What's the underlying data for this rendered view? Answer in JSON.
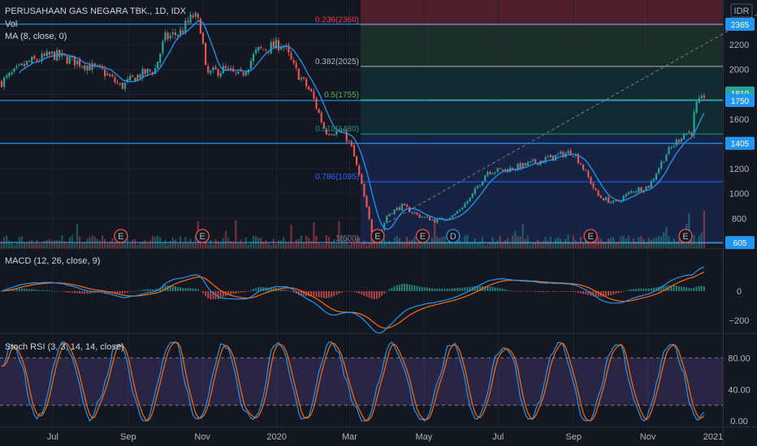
{
  "header": {
    "title": "PERUSAHAAN GAS NEGARA TBK., 1D, IDX",
    "vol_label": "Vol",
    "ma_label": "MA (8, close, 0)",
    "currency": "IDR"
  },
  "price_axis": {
    "ticks": [
      "2200",
      "2000",
      "1800",
      "1600",
      "1200",
      "1000",
      "800"
    ],
    "tick_values": [
      2200,
      2000,
      1800,
      1600,
      1200,
      1000,
      800
    ],
    "range": [
      560,
      2560
    ]
  },
  "price_tags": [
    {
      "label": "2365",
      "value": 2365,
      "style": "line"
    },
    {
      "label": "1810",
      "value": 1810,
      "style": "last"
    },
    {
      "label": "1750",
      "value": 1750,
      "style": "line"
    },
    {
      "label": "1405",
      "value": 1405,
      "style": "line"
    },
    {
      "label": "605",
      "value": 605,
      "style": "line"
    }
  ],
  "horizontal_levels": [
    2365,
    1750,
    1405,
    605
  ],
  "fibonacci": [
    {
      "label": "0.236(2360)",
      "value": 2360,
      "color": "#f23645"
    },
    {
      "label": "0.382(2025)",
      "value": 2025,
      "color": "#b2b5be"
    },
    {
      "label": "0.5(1755)",
      "value": 1755,
      "color": "#4caf50"
    },
    {
      "label": "0.618(1480)",
      "value": 1480,
      "color": "#089981"
    },
    {
      "label": "0.786(1095)",
      "value": 1095,
      "color": "#2962ff"
    },
    {
      "label": "1(600)",
      "value": 600,
      "color": "#787b86"
    }
  ],
  "time_axis": {
    "labels": [
      "Jul",
      "Sep",
      "Nov",
      "2020",
      "Mar",
      "May",
      "Jul",
      "Sep",
      "Nov",
      "2021"
    ]
  },
  "events": [
    {
      "label": "E",
      "type": "earnings"
    },
    {
      "label": "E",
      "type": "earnings"
    },
    {
      "label": "E",
      "type": "earnings"
    },
    {
      "label": "E",
      "type": "earnings"
    },
    {
      "label": "D",
      "type": "dividend"
    },
    {
      "label": "E",
      "type": "earnings"
    },
    {
      "label": "E",
      "type": "earnings"
    }
  ],
  "macd": {
    "label": "MACD (12, 26, close, 9)",
    "ticks": [
      "0",
      "−200"
    ],
    "tick_values": [
      0,
      -200
    ],
    "range": [
      -260,
      160
    ]
  },
  "rsi": {
    "label": "Stoch RSI (3, 3, 14, 14, close)",
    "ticks": [
      "80.00",
      "40.00",
      "0.00"
    ],
    "tick_values": [
      80,
      40,
      0
    ],
    "bands": [
      80,
      20
    ],
    "range": [
      -5,
      102
    ]
  },
  "colors": {
    "up": "#26a69a",
    "down": "#ef5350",
    "ma": "#2196f3",
    "level": "#2196f3",
    "macd": "#2196f3",
    "signal": "#ff6d00",
    "rsi_k": "#2196f3",
    "rsi_d": "#ff6d00",
    "rsi_band": "#7e57c2"
  },
  "chart_data": {
    "type": "candlestick",
    "symbol": "PERUSAHAAN GAS NEGARA TBK.",
    "interval": "1D",
    "exchange": "IDX",
    "close_path": [
      {
        "date": "2019-05-20",
        "close": 1900
      },
      {
        "date": "2019-06-10",
        "close": 2050
      },
      {
        "date": "2019-07-01",
        "close": 2120
      },
      {
        "date": "2019-07-22",
        "close": 2060
      },
      {
        "date": "2019-08-12",
        "close": 1980
      },
      {
        "date": "2019-08-26",
        "close": 1860
      },
      {
        "date": "2019-09-09",
        "close": 1950
      },
      {
        "date": "2019-09-23",
        "close": 2000
      },
      {
        "date": "2019-10-01",
        "close": 2250
      },
      {
        "date": "2019-10-14",
        "close": 2300
      },
      {
        "date": "2019-10-25",
        "close": 2440
      },
      {
        "date": "2019-10-31",
        "close": 2330
      },
      {
        "date": "2019-11-04",
        "close": 1960
      },
      {
        "date": "2019-11-18",
        "close": 2000
      },
      {
        "date": "2019-12-02",
        "close": 1940
      },
      {
        "date": "2019-12-16",
        "close": 2150
      },
      {
        "date": "2020-01-06",
        "close": 2210
      },
      {
        "date": "2020-01-16",
        "close": 2000
      },
      {
        "date": "2020-01-30",
        "close": 1800
      },
      {
        "date": "2020-02-10",
        "close": 1500
      },
      {
        "date": "2020-02-24",
        "close": 1500
      },
      {
        "date": "2020-03-02",
        "close": 1390
      },
      {
        "date": "2020-03-10",
        "close": 1100
      },
      {
        "date": "2020-03-19",
        "close": 700
      },
      {
        "date": "2020-03-24",
        "close": 620
      },
      {
        "date": "2020-04-01",
        "close": 830
      },
      {
        "date": "2020-04-13",
        "close": 900
      },
      {
        "date": "2020-04-27",
        "close": 820
      },
      {
        "date": "2020-05-11",
        "close": 780
      },
      {
        "date": "2020-05-25",
        "close": 820
      },
      {
        "date": "2020-06-08",
        "close": 960
      },
      {
        "date": "2020-06-22",
        "close": 1180
      },
      {
        "date": "2020-07-06",
        "close": 1190
      },
      {
        "date": "2020-07-20",
        "close": 1220
      },
      {
        "date": "2020-08-03",
        "close": 1260
      },
      {
        "date": "2020-08-17",
        "close": 1300
      },
      {
        "date": "2020-08-31",
        "close": 1340
      },
      {
        "date": "2020-09-07",
        "close": 1240
      },
      {
        "date": "2020-09-21",
        "close": 980
      },
      {
        "date": "2020-10-05",
        "close": 920
      },
      {
        "date": "2020-10-19",
        "close": 1020
      },
      {
        "date": "2020-11-02",
        "close": 1060
      },
      {
        "date": "2020-11-16",
        "close": 1320
      },
      {
        "date": "2020-11-30",
        "close": 1480
      },
      {
        "date": "2020-12-07",
        "close": 1500
      },
      {
        "date": "2020-12-10",
        "close": 1700
      },
      {
        "date": "2020-12-15",
        "close": 1750
      },
      {
        "date": "2020-12-18",
        "close": 1810
      }
    ]
  }
}
